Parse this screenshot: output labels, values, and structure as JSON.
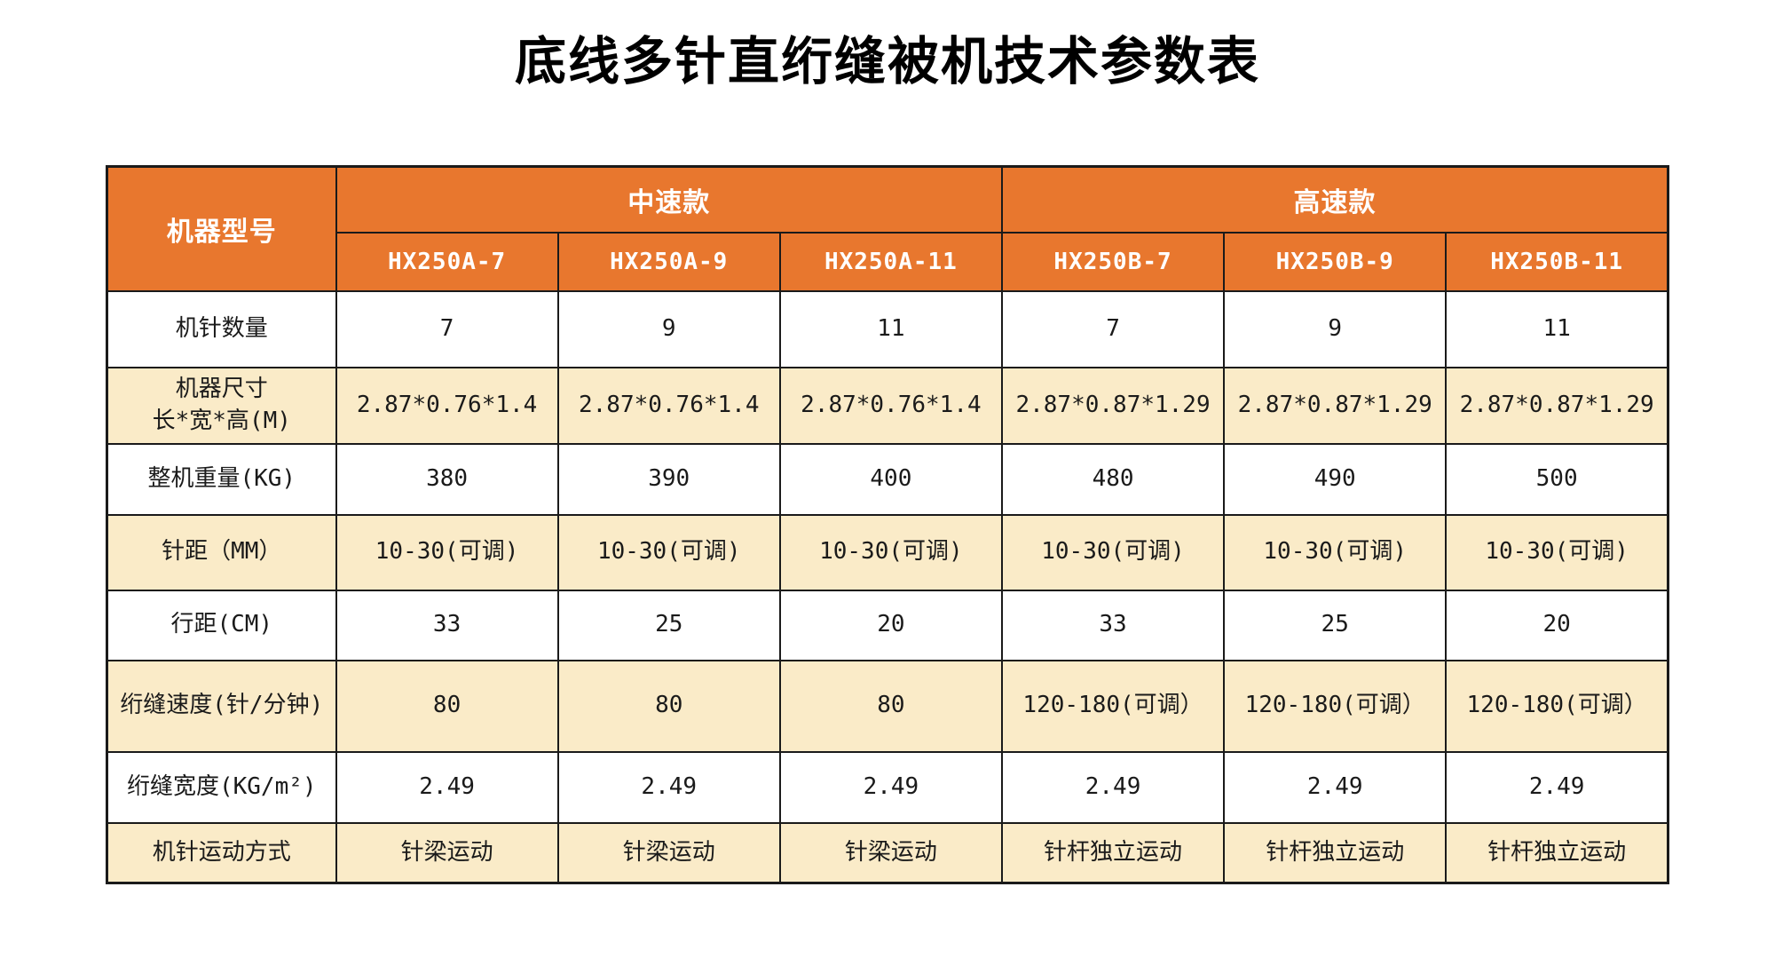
{
  "title": "底线多针直绗缝被机技术参数表",
  "colors": {
    "header-bg": "#E8772E",
    "header-text": "#FFFFFF",
    "row-bg": "#FFFFFF",
    "row-alt-bg": "#FAEBC8",
    "border": "#1A1A1A",
    "body-text": "#1A1A1A"
  },
  "table": {
    "corner_label": "机器型号",
    "groups": [
      {
        "label": "中速款",
        "models": [
          "HX250A-7",
          "HX250A-9",
          "HX250A-11"
        ]
      },
      {
        "label": "高速款",
        "models": [
          "HX250B-7",
          "HX250B-9",
          "HX250B-11"
        ]
      }
    ],
    "rows": [
      {
        "label": "机针数量",
        "values": [
          "7",
          "9",
          "11",
          "7",
          "9",
          "11"
        ]
      },
      {
        "label": "机器尺寸\n长*宽*高(M)",
        "values": [
          "2.87*0.76*1.4",
          "2.87*0.76*1.4",
          "2.87*0.76*1.4",
          "2.87*0.87*1.29",
          "2.87*0.87*1.29",
          "2.87*0.87*1.29"
        ]
      },
      {
        "label": "整机重量(KG)",
        "values": [
          "380",
          "390",
          "400",
          "480",
          "490",
          "500"
        ]
      },
      {
        "label": "针距（MM）",
        "values": [
          "10-30(可调)",
          "10-30(可调)",
          "10-30(可调)",
          "10-30(可调)",
          "10-30(可调)",
          "10-30(可调)"
        ]
      },
      {
        "label": "行距(CM)",
        "values": [
          "33",
          "25",
          "20",
          "33",
          "25",
          "20"
        ]
      },
      {
        "label": "绗缝速度(针/分钟)",
        "values": [
          "80",
          "80",
          "80",
          "120-180(可调）",
          "120-180(可调）",
          "120-180(可调）"
        ]
      },
      {
        "label": "绗缝宽度(KG/m²)",
        "values": [
          "2.49",
          "2.49",
          "2.49",
          "2.49",
          "2.49",
          "2.49"
        ]
      },
      {
        "label": "机针运动方式",
        "values": [
          "针梁运动",
          "针梁运动",
          "针梁运动",
          "针杆独立运动",
          "针杆独立运动",
          "针杆独立运动"
        ]
      }
    ]
  }
}
